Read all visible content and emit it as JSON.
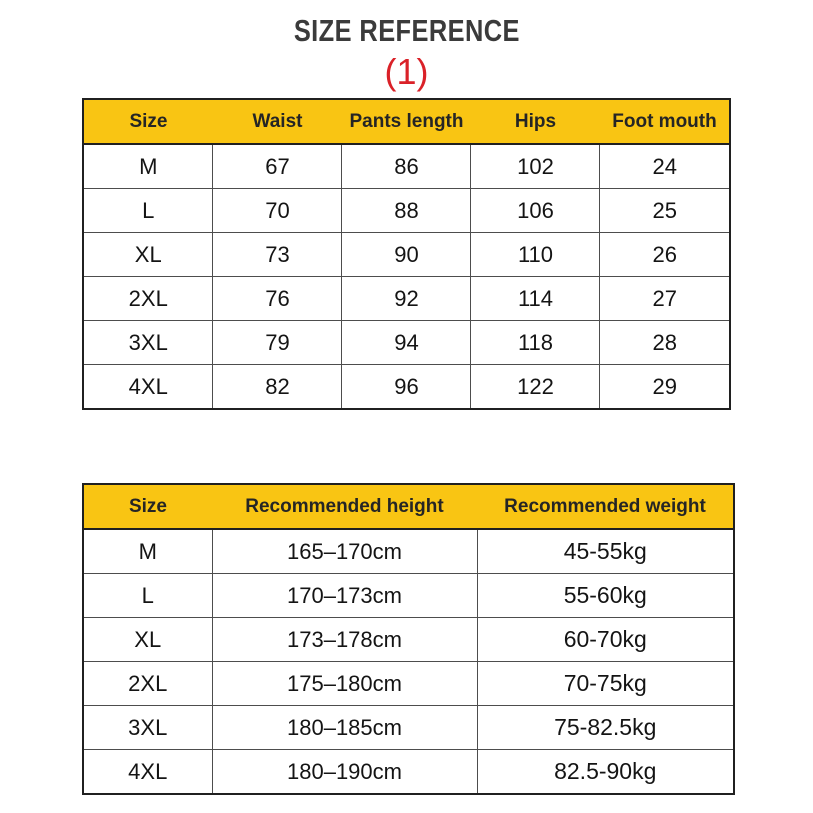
{
  "header": {
    "title": "SIZE REFERENCE",
    "annotation": "(1)"
  },
  "colors": {
    "table_header_bg": "#F9C513",
    "annotation_red": "#DA2128",
    "title_gray": "#3B3B3B",
    "border_dark": "#202020",
    "cell_text": "#141414"
  },
  "size_table": {
    "columns": [
      "Size",
      "Waist",
      "Pants length",
      "Hips",
      "Foot mouth"
    ],
    "rows": [
      [
        "M",
        "67",
        "86",
        "102",
        "24"
      ],
      [
        "L",
        "70",
        "88",
        "106",
        "25"
      ],
      [
        "XL",
        "73",
        "90",
        "110",
        "26"
      ],
      [
        "2XL",
        "76",
        "92",
        "114",
        "27"
      ],
      [
        "3XL",
        "79",
        "94",
        "118",
        "28"
      ],
      [
        "4XL",
        "82",
        "96",
        "122",
        "29"
      ]
    ]
  },
  "fit_table": {
    "columns": [
      "Size",
      "Recommended height",
      "Recommended weight"
    ],
    "rows": [
      [
        "M",
        "165–170cm",
        "45-55kg"
      ],
      [
        "L",
        "170–173cm",
        "55-60kg"
      ],
      [
        "XL",
        "173–178cm",
        "60-70kg"
      ],
      [
        "2XL",
        "175–180cm",
        "70-75kg"
      ],
      [
        "3XL",
        "180–185cm",
        "75-82.5kg"
      ],
      [
        "4XL",
        "180–190cm",
        "82.5-90kg"
      ]
    ]
  }
}
